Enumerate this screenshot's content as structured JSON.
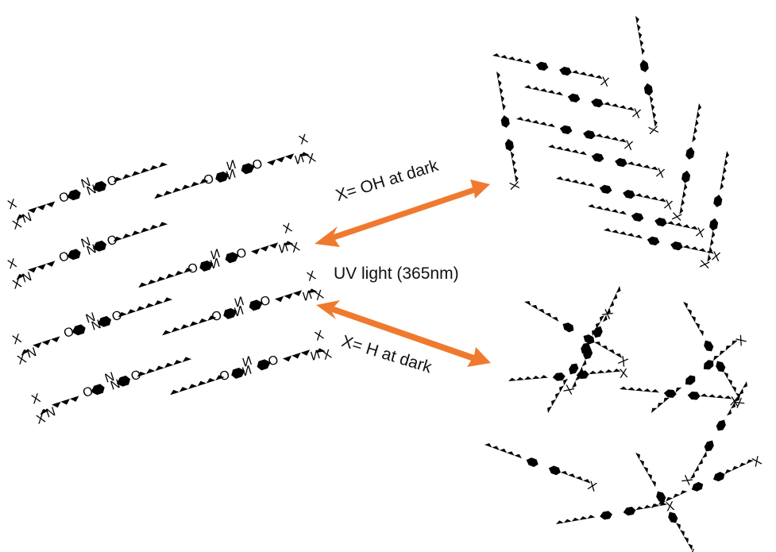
{
  "labels": {
    "top_arrow": "X= OH at dark",
    "middle": "UV light (365nm)",
    "bottom_arrow": "X= H at dark"
  },
  "colors": {
    "molecule": "#2bb24c",
    "arrow": "#ef7a2f",
    "text": "#111111"
  }
}
